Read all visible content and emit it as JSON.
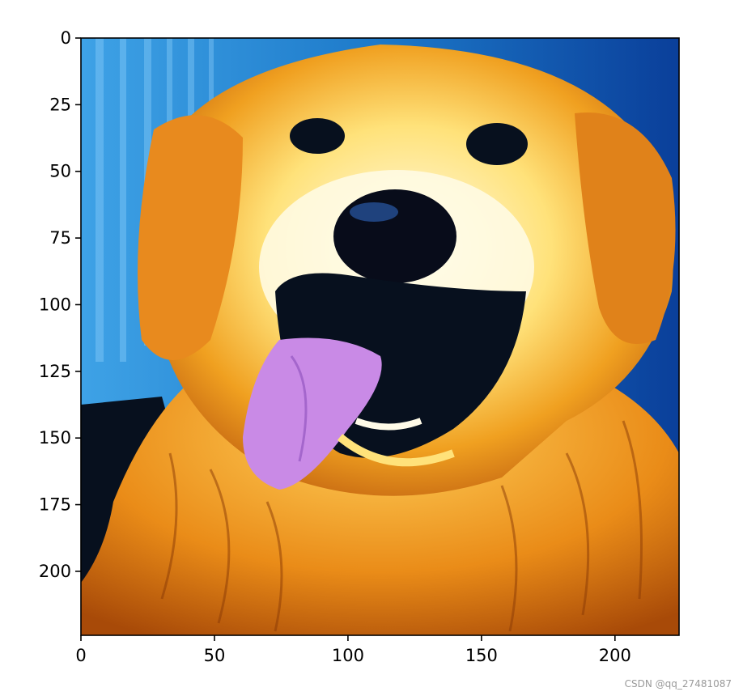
{
  "image": {
    "description_icon": "dog-photo",
    "colors": {
      "background_blue": "#1d79c9",
      "fur_orange": "#f0a020",
      "fur_yellow": "#ffe27a",
      "fur_white": "#fffbe8",
      "dark": "#07101e",
      "tongue": "#c98ae6",
      "nose": "#080c1a"
    }
  },
  "axes": {
    "x_ticks": [
      "0",
      "50",
      "100",
      "150",
      "200"
    ],
    "y_ticks": [
      "0",
      "25",
      "50",
      "75",
      "100",
      "125",
      "150",
      "175",
      "200"
    ],
    "xlim": [
      0,
      224
    ],
    "ylim": [
      224,
      0
    ],
    "x_tick_values": [
      0,
      50,
      100,
      150,
      200
    ],
    "y_tick_values": [
      0,
      25,
      50,
      75,
      100,
      125,
      150,
      175,
      200
    ]
  },
  "watermark": "CSDN @qq_27481087"
}
